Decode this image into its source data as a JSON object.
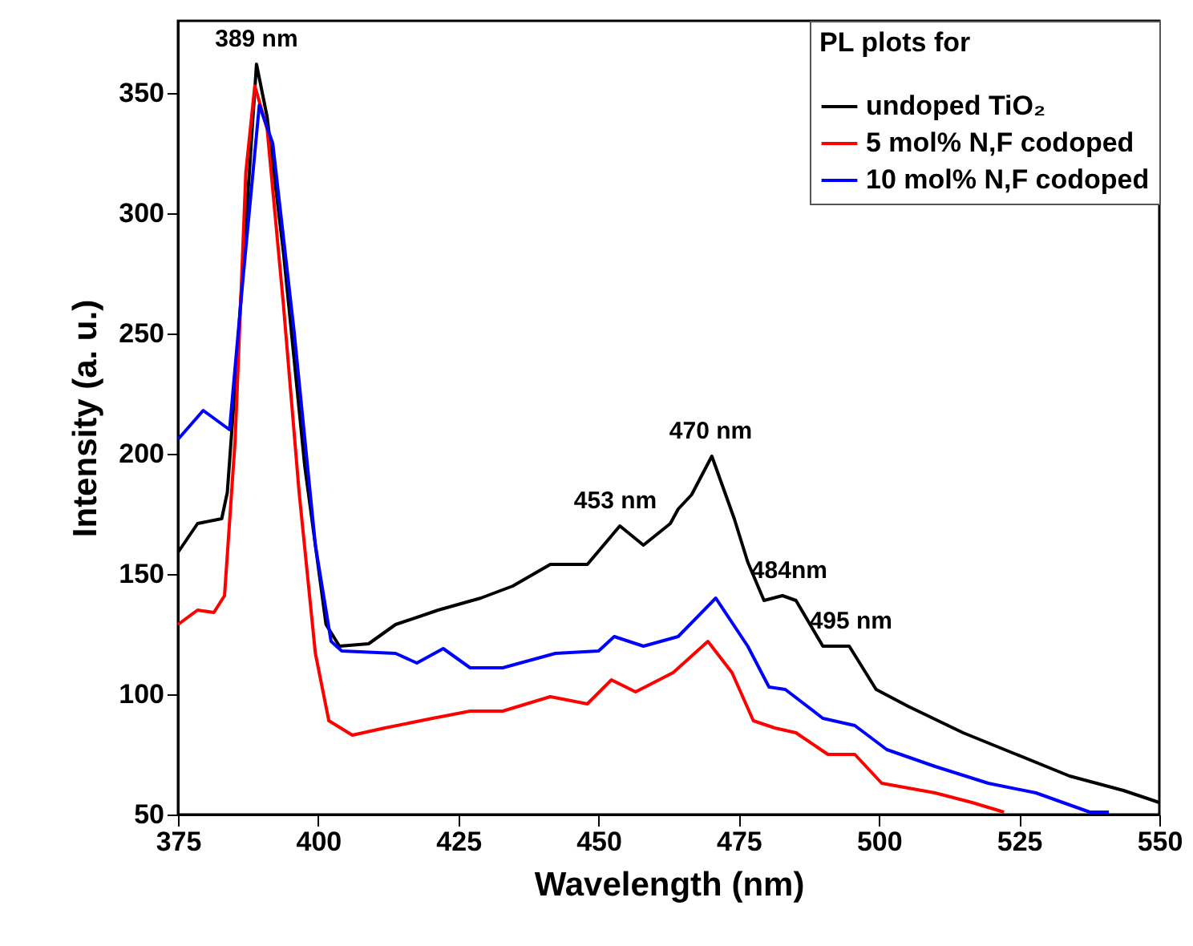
{
  "chart_data": {
    "type": "line",
    "xlabel": "Wavelength (nm)",
    "ylabel": "Intensity (a. u.)",
    "legend_title": "PL plots for",
    "legend": "top right",
    "grid": false,
    "xlim": [
      375,
      550
    ],
    "xticks": [
      375,
      400,
      425,
      450,
      475,
      500,
      525,
      550
    ],
    "ylim": [
      50,
      380
    ],
    "yticks": [
      50,
      100,
      150,
      200,
      250,
      300,
      350
    ],
    "annotations": [
      {
        "text": "389 nm",
        "x": 389,
        "y": 362
      },
      {
        "text": "453 nm",
        "x": 453,
        "y": 170
      },
      {
        "text": "470 nm",
        "x": 470,
        "y": 199
      },
      {
        "text": "484nm",
        "x": 484,
        "y": 141
      },
      {
        "text": "495 nm",
        "x": 495,
        "y": 120
      }
    ],
    "series": [
      {
        "name": "undoped TiO₂",
        "color": "#000000",
        "x": [
          375,
          378.5,
          382.8,
          383.8,
          385.2,
          387.1,
          389,
          390.9,
          393.8,
          397.6,
          401.4,
          403.8,
          409,
          413.8,
          421.4,
          429,
          434.7,
          441.4,
          448,
          453.8,
          458,
          462.8,
          464.2,
          466.6,
          470.2,
          474.2,
          476.6,
          479.5,
          482.8,
          485.2,
          490,
          494.7,
          499.5,
          505.2,
          515,
          524.5,
          534,
          543.6,
          550
        ],
        "values": [
          159,
          171,
          173,
          184,
          229,
          295,
          362,
          340,
          284,
          195,
          129,
          120,
          121,
          129,
          135,
          140,
          145,
          154,
          154,
          170,
          162,
          171,
          177,
          183,
          199,
          173,
          155,
          139,
          141,
          139,
          120,
          120,
          102,
          95,
          84,
          75,
          66,
          60,
          55
        ]
      },
      {
        "name": "5 mol% N,F codoped",
        "color": "#ff0000",
        "x": [
          375,
          378.5,
          381.4,
          383.3,
          385.2,
          387.1,
          388.7,
          390.9,
          393.8,
          396.6,
          399.5,
          401.9,
          406.1,
          411.9,
          420.4,
          427.1,
          432.9,
          441.4,
          448,
          452.3,
          456.6,
          463.3,
          469.5,
          473.8,
          477.6,
          481.4,
          485.2,
          490.9,
          495.7,
          500.5,
          510,
          516.6,
          522.3
        ],
        "values": [
          129,
          135,
          134,
          141,
          206,
          317,
          353,
          335,
          262,
          184,
          117,
          89,
          83,
          86,
          90,
          93,
          93,
          99,
          96,
          106,
          101,
          109,
          122,
          109,
          89,
          86,
          84,
          75,
          75,
          63,
          59,
          55,
          51
        ]
      },
      {
        "name": "10 mol% N,F codoped",
        "color": "#0000ff",
        "x": [
          375,
          379.5,
          384.2,
          386.6,
          389.5,
          391.9,
          395.7,
          399.5,
          402.3,
          404.2,
          413.8,
          417.6,
          422.3,
          427.1,
          432.9,
          442.3,
          450,
          452.8,
          458,
          464.2,
          470.9,
          476.6,
          480.4,
          483.3,
          490,
          495.7,
          501.4,
          510,
          519.5,
          528,
          534,
          537.6,
          541
        ],
        "values": [
          206,
          218,
          210,
          273,
          345,
          329,
          251,
          162,
          122,
          118,
          117,
          113,
          119,
          111,
          111,
          117,
          118,
          124,
          120,
          124,
          140,
          120,
          103,
          102,
          90,
          87,
          77,
          70,
          63,
          59,
          54,
          51,
          51
        ]
      }
    ]
  }
}
